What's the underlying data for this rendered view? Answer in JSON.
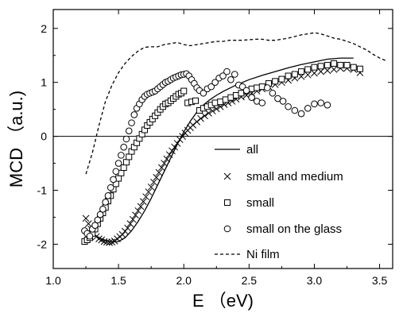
{
  "chart_data": {
    "type": "scatter",
    "xlabel": "E （eV)",
    "ylabel": "MCD （a.u.)",
    "xlim": [
      1.0,
      3.6
    ],
    "ylim": [
      -2.45,
      2.35
    ],
    "x_ticks": [
      1.0,
      1.5,
      2.0,
      2.5,
      3.0,
      3.5
    ],
    "x_tick_labels": [
      "1.0",
      "1.5",
      "2.0",
      "2.5",
      "3.0",
      "3.5"
    ],
    "y_ticks": [
      -2,
      -1,
      0,
      1,
      2
    ],
    "y_tick_labels": [
      "-2",
      "-1",
      "0",
      "1",
      "2"
    ],
    "zero_line": true,
    "grid": false,
    "legend_position": "bottom-right",
    "series": [
      {
        "name": "all",
        "style": "solid-line",
        "x": [
          1.3,
          1.35,
          1.4,
          1.45,
          1.5,
          1.55,
          1.6,
          1.65,
          1.7,
          1.75,
          1.8,
          1.85,
          1.9,
          1.95,
          2.0,
          2.05,
          2.1,
          2.15,
          2.2,
          2.25,
          2.3,
          2.4,
          2.5,
          2.6,
          2.7,
          2.8,
          2.9,
          3.0,
          3.1,
          3.2,
          3.3
        ],
        "y": [
          -1.8,
          -1.88,
          -1.93,
          -1.96,
          -1.95,
          -1.88,
          -1.75,
          -1.58,
          -1.38,
          -1.15,
          -0.9,
          -0.65,
          -0.4,
          -0.15,
          0.08,
          0.28,
          0.45,
          0.58,
          0.68,
          0.76,
          0.83,
          0.95,
          1.05,
          1.13,
          1.2,
          1.27,
          1.33,
          1.38,
          1.43,
          1.45,
          1.45
        ]
      },
      {
        "name": "small and medium",
        "style": "x-marker",
        "x": [
          1.25,
          1.27,
          1.29,
          1.31,
          1.33,
          1.35,
          1.37,
          1.39,
          1.41,
          1.43,
          1.45,
          1.47,
          1.49,
          1.51,
          1.53,
          1.55,
          1.57,
          1.59,
          1.61,
          1.63,
          1.65,
          1.67,
          1.69,
          1.71,
          1.73,
          1.75,
          1.77,
          1.79,
          1.81,
          1.83,
          1.85,
          1.87,
          1.89,
          1.91,
          1.93,
          1.95,
          1.97,
          1.99,
          2.01,
          2.03,
          2.05,
          2.07,
          2.1,
          2.13,
          2.16,
          2.19,
          2.22,
          2.25,
          2.28,
          2.31,
          2.34,
          2.37,
          2.4,
          2.44,
          2.48,
          2.52,
          2.56,
          2.6,
          2.65,
          2.7,
          2.75,
          2.8,
          2.85,
          2.9,
          2.95,
          3.0,
          3.05,
          3.1,
          3.15,
          3.2,
          3.25,
          3.3,
          3.35
        ],
        "y": [
          -1.52,
          -1.62,
          -1.72,
          -1.8,
          -1.86,
          -1.9,
          -1.92,
          -1.95,
          -1.96,
          -1.97,
          -1.96,
          -1.94,
          -1.9,
          -1.86,
          -1.82,
          -1.76,
          -1.7,
          -1.62,
          -1.54,
          -1.46,
          -1.38,
          -1.3,
          -1.21,
          -1.12,
          -1.03,
          -0.94,
          -0.85,
          -0.76,
          -0.67,
          -0.58,
          -0.5,
          -0.42,
          -0.34,
          -0.27,
          -0.2,
          -0.13,
          -0.06,
          0.0,
          0.06,
          0.11,
          0.16,
          0.21,
          0.27,
          0.33,
          0.38,
          0.43,
          0.47,
          0.51,
          0.55,
          0.59,
          0.62,
          0.65,
          0.69,
          0.73,
          0.76,
          0.8,
          0.84,
          0.88,
          0.92,
          0.96,
          1.0,
          1.04,
          1.08,
          1.11,
          1.14,
          1.17,
          1.2,
          1.22,
          1.24,
          1.26,
          1.26,
          1.24,
          1.18
        ]
      },
      {
        "name": "small",
        "style": "square-marker",
        "x": [
          1.24,
          1.26,
          1.28,
          1.3,
          1.32,
          1.34,
          1.36,
          1.38,
          1.4,
          1.42,
          1.44,
          1.46,
          1.48,
          1.5,
          1.52,
          1.54,
          1.56,
          1.58,
          1.6,
          1.62,
          1.64,
          1.66,
          1.68,
          1.7,
          1.72,
          1.74,
          1.76,
          1.78,
          1.8,
          1.82,
          1.84,
          1.86,
          1.88,
          1.9,
          1.92,
          1.94,
          1.96,
          1.98,
          2.0,
          2.03,
          2.06,
          2.09,
          2.12,
          2.15,
          2.18,
          2.21,
          2.24,
          2.28,
          2.32,
          2.36,
          2.4,
          2.44,
          2.48,
          2.52,
          2.56,
          2.6,
          2.65,
          2.7,
          2.75,
          2.8,
          2.85,
          2.9,
          2.95,
          3.0,
          3.05,
          3.1,
          3.15,
          3.2,
          3.25,
          3.3,
          3.35
        ],
        "y": [
          -1.95,
          -1.92,
          -1.88,
          -1.8,
          -1.72,
          -1.62,
          -1.52,
          -1.42,
          -1.32,
          -1.2,
          -1.1,
          -0.98,
          -0.88,
          -0.78,
          -0.68,
          -0.58,
          -0.48,
          -0.38,
          -0.28,
          -0.2,
          -0.12,
          -0.04,
          0.04,
          0.12,
          0.2,
          0.26,
          0.32,
          0.38,
          0.44,
          0.5,
          0.55,
          0.6,
          0.62,
          0.66,
          0.7,
          0.74,
          0.78,
          0.8,
          0.84,
          0.62,
          0.64,
          0.66,
          0.48,
          0.52,
          0.55,
          0.58,
          0.62,
          0.64,
          0.68,
          0.72,
          0.76,
          0.8,
          0.84,
          0.88,
          0.9,
          0.92,
          0.98,
          1.02,
          1.06,
          1.12,
          1.15,
          1.2,
          1.24,
          1.28,
          1.3,
          1.32,
          1.35,
          1.32,
          1.32,
          1.28,
          1.25
        ]
      },
      {
        "name": "small on the glass",
        "style": "circle-marker",
        "x": [
          1.24,
          1.26,
          1.28,
          1.3,
          1.32,
          1.34,
          1.36,
          1.38,
          1.4,
          1.42,
          1.44,
          1.46,
          1.48,
          1.5,
          1.52,
          1.54,
          1.56,
          1.58,
          1.6,
          1.62,
          1.64,
          1.66,
          1.68,
          1.7,
          1.72,
          1.74,
          1.76,
          1.78,
          1.8,
          1.82,
          1.84,
          1.86,
          1.88,
          1.9,
          1.92,
          1.94,
          1.96,
          1.98,
          2.0,
          2.02,
          2.04,
          2.06,
          2.08,
          2.1,
          2.12,
          2.15,
          2.18,
          2.21,
          2.24,
          2.27,
          2.3,
          2.33,
          2.36,
          2.39,
          2.42,
          2.45,
          2.48,
          2.52,
          2.56,
          2.6,
          2.64,
          2.68,
          2.72,
          2.76,
          2.8,
          2.85,
          2.9,
          2.95,
          3.0,
          3.05,
          3.1
        ],
        "y": [
          -1.75,
          -1.8,
          -1.85,
          -1.72,
          -1.65,
          -1.55,
          -1.45,
          -1.35,
          -1.22,
          -1.1,
          -0.95,
          -0.8,
          -0.65,
          -0.5,
          -0.35,
          -0.2,
          -0.05,
          0.1,
          0.25,
          0.4,
          0.52,
          0.6,
          0.68,
          0.74,
          0.78,
          0.8,
          0.82,
          0.84,
          0.88,
          0.92,
          0.96,
          1.0,
          1.02,
          1.05,
          1.08,
          1.1,
          1.12,
          1.14,
          1.15,
          1.16,
          1.12,
          1.05,
          0.98,
          0.9,
          0.85,
          0.8,
          0.88,
          0.92,
          1.0,
          1.08,
          1.12,
          1.2,
          1.05,
          1.15,
          0.95,
          0.92,
          0.85,
          0.72,
          0.65,
          0.62,
          0.9,
          0.8,
          0.7,
          0.65,
          0.55,
          0.48,
          0.42,
          0.52,
          0.6,
          0.62,
          0.58
        ]
      },
      {
        "name": "Ni film",
        "style": "dashed-line",
        "x": [
          1.25,
          1.3,
          1.35,
          1.4,
          1.45,
          1.5,
          1.55,
          1.6,
          1.65,
          1.7,
          1.75,
          1.8,
          1.85,
          1.9,
          1.95,
          2.0,
          2.05,
          2.1,
          2.15,
          2.2,
          2.25,
          2.3,
          2.35,
          2.4,
          2.45,
          2.5,
          2.55,
          2.6,
          2.65,
          2.7,
          2.75,
          2.8,
          2.85,
          2.9,
          2.95,
          3.0,
          3.05,
          3.1,
          3.15,
          3.2,
          3.25,
          3.3,
          3.35,
          3.4,
          3.45,
          3.5,
          3.55
        ],
        "y": [
          -0.7,
          -0.3,
          0.2,
          0.65,
          0.95,
          1.18,
          1.35,
          1.48,
          1.58,
          1.65,
          1.66,
          1.66,
          1.7,
          1.72,
          1.74,
          1.7,
          1.68,
          1.7,
          1.72,
          1.74,
          1.76,
          1.76,
          1.78,
          1.78,
          1.78,
          1.79,
          1.8,
          1.8,
          1.78,
          1.78,
          1.8,
          1.82,
          1.85,
          1.88,
          1.9,
          1.92,
          1.9,
          1.86,
          1.82,
          1.8,
          1.76,
          1.72,
          1.66,
          1.6,
          1.52,
          1.45,
          1.4
        ]
      }
    ]
  }
}
